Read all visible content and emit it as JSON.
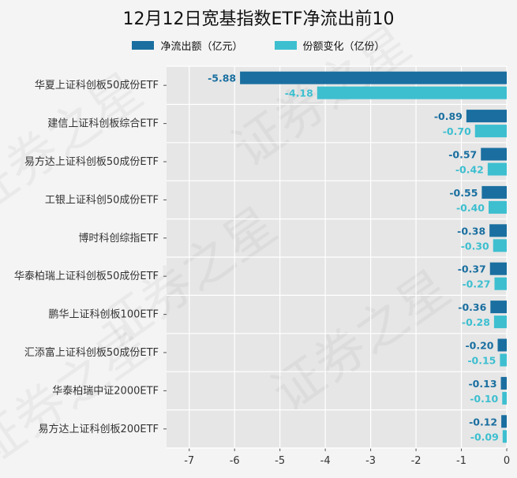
{
  "chart_data": {
    "type": "bar",
    "orientation": "horizontal",
    "title": "12月12日宽基指数ETF净流出前10",
    "categories": [
      "华夏上证科创板50成份ETF",
      "建信上证科创板综合ETF",
      "易方达上证科创板50成份ETF",
      "工银上证科创50成份ETF",
      "博时科创综指ETF",
      "华泰柏瑞上证科创板50成份ETF",
      "鹏华上证科创板100ETF",
      "汇添富上证科创板50成份ETF",
      "华泰柏瑞中证2000ETF",
      "易方达上证科创板200ETF"
    ],
    "series": [
      {
        "name": "净流出额（亿元）",
        "color": "#1a6fa0",
        "values": [
          -5.88,
          -0.89,
          -0.57,
          -0.55,
          -0.38,
          -0.37,
          -0.36,
          -0.2,
          -0.13,
          -0.12
        ],
        "labels": [
          "-5.88",
          "-0.89",
          "-0.57",
          "-0.55",
          "-0.38",
          "-0.37",
          "-0.36",
          "-0.20",
          "-0.13",
          "-0.12"
        ]
      },
      {
        "name": "份额变化（亿份）",
        "color": "#3dbfd0",
        "values": [
          -4.18,
          -0.7,
          -0.42,
          -0.4,
          -0.3,
          -0.27,
          -0.28,
          -0.15,
          -0.1,
          -0.09
        ],
        "labels": [
          "-4.18",
          "-0.70",
          "-0.42",
          "-0.40",
          "-0.30",
          "-0.27",
          "-0.28",
          "-0.15",
          "-0.10",
          "-0.09"
        ]
      }
    ],
    "xlim": [
      -7.5,
      0
    ],
    "xticks": [
      -7,
      -6,
      -5,
      -4,
      -3,
      -2,
      -1,
      0
    ],
    "grid": true,
    "legend_position": "top"
  },
  "watermark": "证券之星"
}
